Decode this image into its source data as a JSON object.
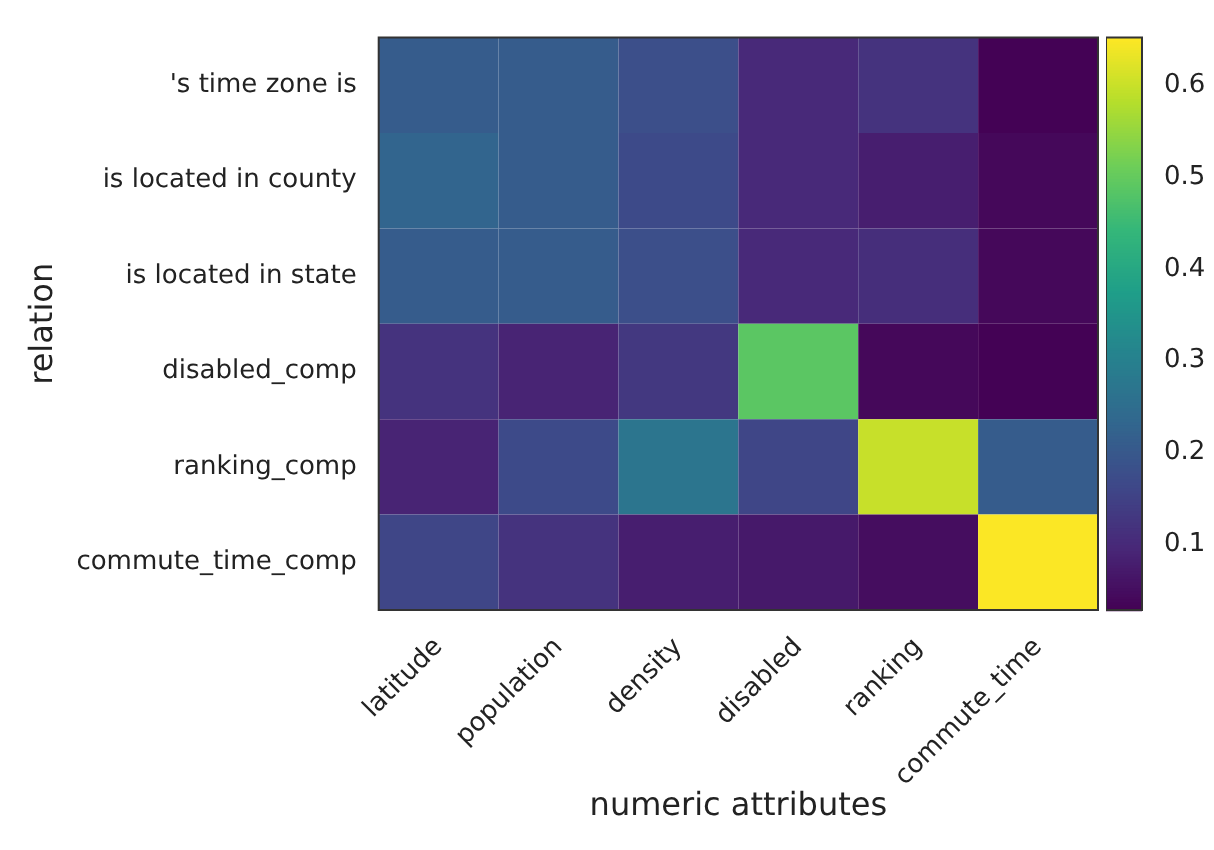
{
  "chart_data": {
    "type": "heatmap",
    "xlabel": "numeric attributes",
    "ylabel": "relation",
    "categories": [
      "latitude",
      "population",
      "density",
      "disabled",
      "ranking",
      "commute_time"
    ],
    "y_categories": [
      "'s time zone is",
      "is located in county",
      "is located in state",
      "disabled_comp",
      "ranking_comp",
      "commute_time_comp"
    ],
    "cells": [
      [
        0.21,
        0.21,
        0.18,
        0.1,
        0.12,
        0.03
      ],
      [
        0.23,
        0.21,
        0.17,
        0.1,
        0.08,
        0.04
      ],
      [
        0.21,
        0.21,
        0.18,
        0.1,
        0.11,
        0.04
      ],
      [
        0.12,
        0.09,
        0.13,
        0.49,
        0.04,
        0.03
      ],
      [
        0.09,
        0.17,
        0.27,
        0.16,
        0.6,
        0.21
      ],
      [
        0.16,
        0.12,
        0.08,
        0.07,
        0.05,
        0.65
      ]
    ],
    "clim": [
      0.028,
      0.652
    ],
    "cticks": [
      0.1,
      0.2,
      0.3,
      0.4,
      0.5,
      0.6
    ]
  }
}
